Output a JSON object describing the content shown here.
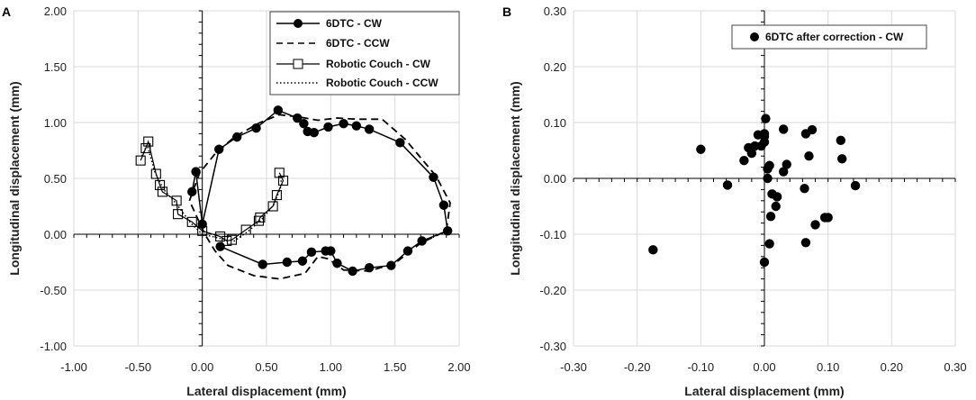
{
  "chart_data": [
    {
      "panel": "A",
      "type": "line",
      "xlabel": "Lateral displacement (mm)",
      "ylabel": "Longitudinal displacement (mm)",
      "xlim": [
        -1.0,
        2.0
      ],
      "ylim": [
        -1.0,
        2.0
      ],
      "xticks": [
        "-1.00",
        "-0.50",
        "0.00",
        "0.50",
        "1.00",
        "1.50",
        "2.00"
      ],
      "yticks": [
        "-1.00",
        "-0.50",
        "0.00",
        "0.50",
        "1.00",
        "1.50",
        "2.00"
      ],
      "grid": true,
      "legend_position": "top-right",
      "series": [
        {
          "name": "6DTC - CW",
          "style": "solid-circle",
          "points": [
            [
              -0.08,
              0.38
            ],
            [
              -0.05,
              0.56
            ],
            [
              0.0,
              0.09
            ],
            [
              0.13,
              0.76
            ],
            [
              0.27,
              0.87
            ],
            [
              0.42,
              0.95
            ],
            [
              0.59,
              1.11
            ],
            [
              0.74,
              1.04
            ],
            [
              0.79,
              0.99
            ],
            [
              0.82,
              0.92
            ],
            [
              0.87,
              0.91
            ],
            [
              0.98,
              0.96
            ],
            [
              1.1,
              0.99
            ],
            [
              1.2,
              0.97
            ],
            [
              1.3,
              0.94
            ],
            [
              1.54,
              0.82
            ],
            [
              1.8,
              0.51
            ],
            [
              1.88,
              0.26
            ],
            [
              1.91,
              0.03
            ],
            [
              1.71,
              -0.06
            ],
            [
              1.6,
              -0.15
            ],
            [
              1.47,
              -0.28
            ],
            [
              1.3,
              -0.3
            ],
            [
              1.17,
              -0.33
            ],
            [
              1.05,
              -0.26
            ],
            [
              1.0,
              -0.15
            ],
            [
              0.96,
              -0.15
            ],
            [
              0.85,
              -0.16
            ],
            [
              0.78,
              -0.24
            ],
            [
              0.66,
              -0.25
            ],
            [
              0.47,
              -0.27
            ],
            [
              0.14,
              -0.11
            ]
          ]
        },
        {
          "name": "6DTC - CCW",
          "style": "dashed",
          "points": [
            [
              -0.1,
              0.3
            ],
            [
              -0.02,
              0.55
            ],
            [
              0.1,
              0.72
            ],
            [
              0.25,
              0.87
            ],
            [
              0.45,
              1.0
            ],
            [
              0.6,
              1.07
            ],
            [
              0.75,
              1.05
            ],
            [
              0.9,
              1.02
            ],
            [
              1.05,
              1.04
            ],
            [
              1.2,
              1.03
            ],
            [
              1.4,
              1.03
            ],
            [
              1.58,
              0.85
            ],
            [
              1.82,
              0.52
            ],
            [
              1.93,
              0.28
            ],
            [
              1.9,
              0.03
            ],
            [
              1.7,
              -0.08
            ],
            [
              1.5,
              -0.26
            ],
            [
              1.3,
              -0.33
            ],
            [
              1.1,
              -0.32
            ],
            [
              0.98,
              -0.22
            ],
            [
              0.9,
              -0.2
            ],
            [
              0.8,
              -0.35
            ],
            [
              0.6,
              -0.4
            ],
            [
              0.4,
              -0.37
            ],
            [
              0.2,
              -0.28
            ],
            [
              0.1,
              -0.15
            ],
            [
              0.02,
              0.0
            ],
            [
              -0.1,
              0.3
            ]
          ]
        },
        {
          "name": "Robotic Couch - CW",
          "style": "solid-square",
          "points": [
            [
              -0.48,
              0.66
            ],
            [
              -0.44,
              0.77
            ],
            [
              -0.42,
              0.83
            ],
            [
              -0.36,
              0.54
            ],
            [
              -0.33,
              0.44
            ],
            [
              -0.31,
              0.38
            ],
            [
              -0.2,
              0.3
            ],
            [
              -0.19,
              0.18
            ],
            [
              -0.08,
              0.11
            ],
            [
              0.0,
              0.03
            ],
            [
              0.14,
              -0.02
            ],
            [
              0.19,
              -0.06
            ],
            [
              0.23,
              -0.05
            ],
            [
              0.34,
              0.04
            ],
            [
              0.44,
              0.12
            ],
            [
              0.45,
              0.15
            ],
            [
              0.55,
              0.25
            ],
            [
              0.58,
              0.35
            ],
            [
              0.63,
              0.48
            ],
            [
              0.6,
              0.55
            ]
          ]
        },
        {
          "name": "Robotic Couch - CCW",
          "style": "dotted",
          "points": [
            [
              -0.47,
              0.7
            ],
            [
              -0.43,
              0.8
            ],
            [
              -0.37,
              0.56
            ],
            [
              -0.3,
              0.4
            ],
            [
              -0.2,
              0.27
            ],
            [
              -0.09,
              0.1
            ],
            [
              0.0,
              0.0
            ],
            [
              0.15,
              -0.04
            ],
            [
              0.25,
              -0.06
            ],
            [
              0.35,
              0.02
            ],
            [
              0.46,
              0.13
            ],
            [
              0.56,
              0.27
            ],
            [
              0.62,
              0.45
            ],
            [
              0.6,
              0.53
            ]
          ]
        }
      ]
    },
    {
      "panel": "B",
      "type": "scatter",
      "xlabel": "Lateral displacement (mm)",
      "ylabel": "Longitudinal displacement (mm)",
      "xlim": [
        -0.3,
        0.3
      ],
      "ylim": [
        -0.3,
        0.3
      ],
      "xticks": [
        "-0.30",
        "-0.20",
        "-0.10",
        "0.00",
        "0.10",
        "0.20",
        "0.30"
      ],
      "yticks": [
        "-0.30",
        "-0.20",
        "-0.10",
        "0.00",
        "0.10",
        "0.20",
        "0.30"
      ],
      "grid": true,
      "legend_position": "top-right",
      "series": [
        {
          "name": "6DTC after correction - CW",
          "style": "solid-circle",
          "points": [
            [
              -0.175,
              -0.128
            ],
            [
              -0.1,
              0.052
            ],
            [
              -0.058,
              -0.012
            ],
            [
              -0.032,
              0.032
            ],
            [
              -0.025,
              0.055
            ],
            [
              -0.02,
              0.045
            ],
            [
              -0.015,
              0.058
            ],
            [
              -0.01,
              0.078
            ],
            [
              -0.005,
              0.058
            ],
            [
              0.0,
              0.075
            ],
            [
              0.0,
              0.08
            ],
            [
              0.0,
              0.065
            ],
            [
              0.002,
              0.107
            ],
            [
              0.005,
              0.0
            ],
            [
              0.005,
              0.017
            ],
            [
              0.008,
              0.023
            ],
            [
              0.008,
              -0.117
            ],
            [
              0.01,
              -0.068
            ],
            [
              0.012,
              -0.028
            ],
            [
              0.018,
              -0.05
            ],
            [
              0.02,
              -0.033
            ],
            [
              0.03,
              0.088
            ],
            [
              0.03,
              0.012
            ],
            [
              0.035,
              0.025
            ],
            [
              0.0,
              -0.15
            ],
            [
              0.063,
              -0.018
            ],
            [
              0.065,
              0.08
            ],
            [
              0.065,
              -0.115
            ],
            [
              0.07,
              0.04
            ],
            [
              0.075,
              0.087
            ],
            [
              0.08,
              -0.083
            ],
            [
              0.095,
              -0.07
            ],
            [
              0.1,
              -0.07
            ],
            [
              0.12,
              0.068
            ],
            [
              0.122,
              0.035
            ],
            [
              0.143,
              -0.013
            ]
          ]
        }
      ]
    }
  ]
}
